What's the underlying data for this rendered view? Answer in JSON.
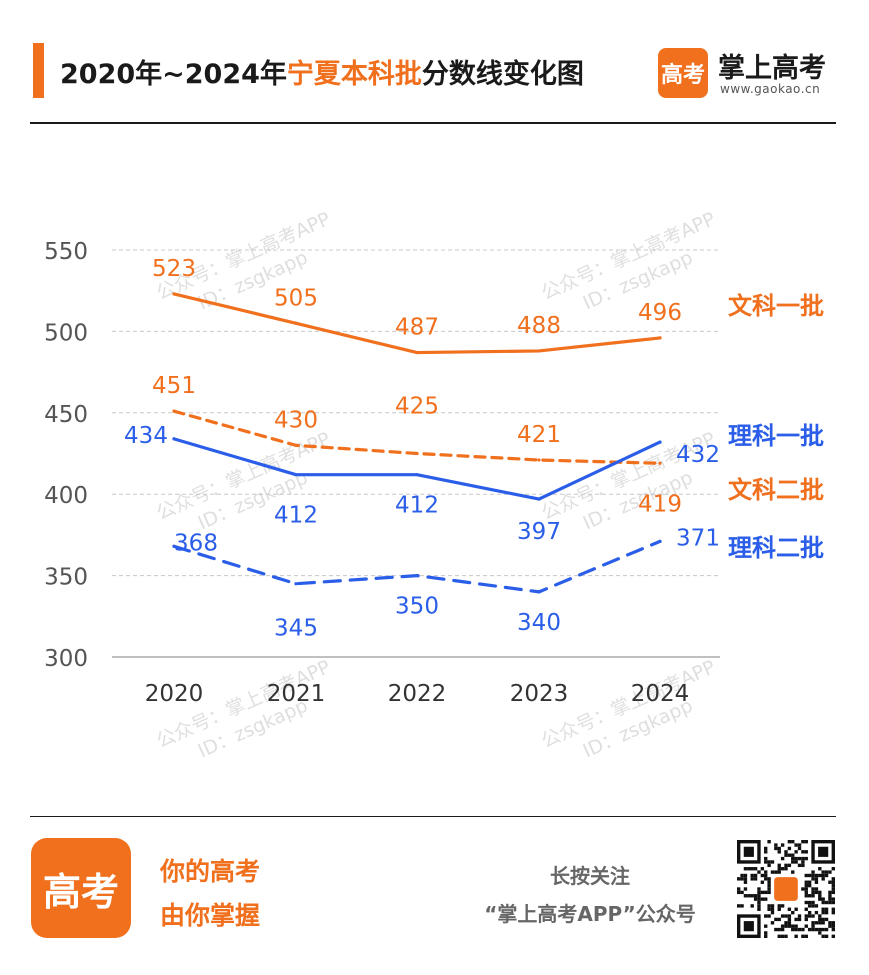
{
  "header": {
    "title_prefix": "2020年~2024年",
    "title_highlight": "宁夏本科批",
    "title_suffix": "分数线变化图"
  },
  "brand": {
    "logo_text": "高考",
    "name": "掌上高考",
    "url": "www.gaokao.cn"
  },
  "watermark": {
    "line1": "公众号：掌上高考APP",
    "line2": "ID：zsgkapp"
  },
  "chart_data": {
    "type": "line",
    "title": "2020年~2024年宁夏本科批分数线变化图",
    "categories": [
      "2020",
      "2021",
      "2022",
      "2023",
      "2024"
    ],
    "ylim": [
      300,
      550
    ],
    "yticks": [
      300,
      350,
      400,
      450,
      500,
      550
    ],
    "grid": true,
    "legend_placement": "right end of each line",
    "series": [
      {
        "name": "文科一批",
        "values": [
          523,
          505,
          487,
          488,
          496
        ],
        "color": "#f0701e",
        "style": "solid"
      },
      {
        "name": "文科二批",
        "values": [
          451,
          430,
          425,
          421,
          419
        ],
        "color": "#f0701e",
        "style": "dashed"
      },
      {
        "name": "理科一批",
        "values": [
          434,
          412,
          412,
          397,
          432
        ],
        "color": "#2b5ee8",
        "style": "solid"
      },
      {
        "name": "理科二批",
        "values": [
          368,
          345,
          350,
          340,
          371
        ],
        "color": "#2b5ee8",
        "style": "dashed"
      }
    ]
  },
  "footer": {
    "logo_text": "高考",
    "slogan_line1": "你的高考",
    "slogan_line2": "由你掌握",
    "follow_line1": "长按关注",
    "follow_line2": "“掌上高考APP”公众号"
  },
  "colors": {
    "accent": "#f0701e",
    "blue": "#2b5ee8",
    "grid": "#c8c8c8",
    "tick": "#555555"
  }
}
